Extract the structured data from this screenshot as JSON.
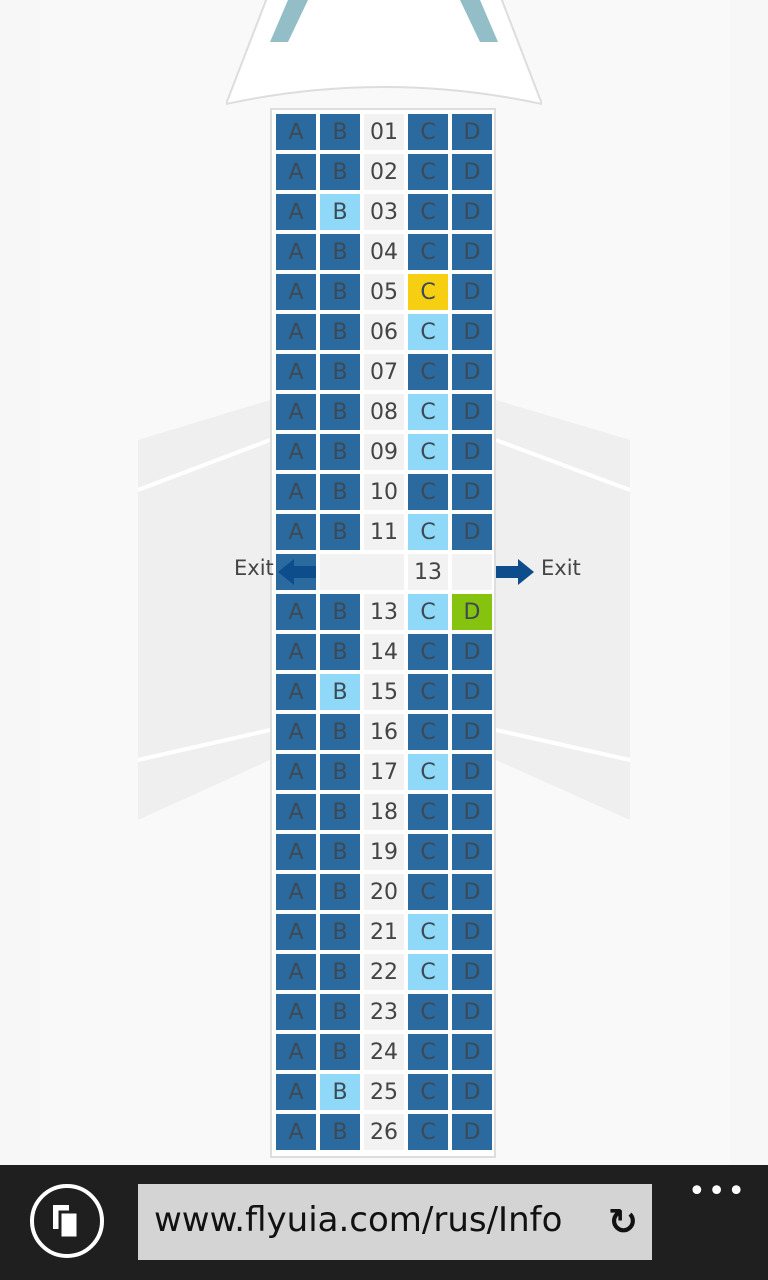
{
  "seatmap": {
    "colors": {
      "occupied": "#2a6a9e",
      "available": "#8fd8f8",
      "selected": "#f6cf12",
      "highlight": "#86c30e"
    },
    "exit_label": "Exit",
    "exit_row_number": "13",
    "rows": [
      {
        "num": "01",
        "A": "occupied",
        "B": "occupied",
        "C": "occupied",
        "D": "occupied"
      },
      {
        "num": "02",
        "A": "occupied",
        "B": "occupied",
        "C": "occupied",
        "D": "occupied"
      },
      {
        "num": "03",
        "A": "occupied",
        "B": "available",
        "C": "occupied",
        "D": "occupied"
      },
      {
        "num": "04",
        "A": "occupied",
        "B": "occupied",
        "C": "occupied",
        "D": "occupied"
      },
      {
        "num": "05",
        "A": "occupied",
        "B": "occupied",
        "C": "selected",
        "D": "occupied"
      },
      {
        "num": "06",
        "A": "occupied",
        "B": "occupied",
        "C": "available",
        "D": "occupied"
      },
      {
        "num": "07",
        "A": "occupied",
        "B": "occupied",
        "C": "occupied",
        "D": "occupied"
      },
      {
        "num": "08",
        "A": "occupied",
        "B": "occupied",
        "C": "available",
        "D": "occupied"
      },
      {
        "num": "09",
        "A": "occupied",
        "B": "occupied",
        "C": "available",
        "D": "occupied"
      },
      {
        "num": "10",
        "A": "occupied",
        "B": "occupied",
        "C": "occupied",
        "D": "occupied"
      },
      {
        "num": "11",
        "A": "occupied",
        "B": "occupied",
        "C": "available",
        "D": "occupied"
      },
      {
        "exit": true
      },
      {
        "num": "13",
        "A": "occupied",
        "B": "occupied",
        "C": "available",
        "D": "highlight"
      },
      {
        "num": "14",
        "A": "occupied",
        "B": "occupied",
        "C": "occupied",
        "D": "occupied"
      },
      {
        "num": "15",
        "A": "occupied",
        "B": "available",
        "C": "occupied",
        "D": "occupied"
      },
      {
        "num": "16",
        "A": "occupied",
        "B": "occupied",
        "C": "occupied",
        "D": "occupied"
      },
      {
        "num": "17",
        "A": "occupied",
        "B": "occupied",
        "C": "available",
        "D": "occupied"
      },
      {
        "num": "18",
        "A": "occupied",
        "B": "occupied",
        "C": "occupied",
        "D": "occupied"
      },
      {
        "num": "19",
        "A": "occupied",
        "B": "occupied",
        "C": "occupied",
        "D": "occupied"
      },
      {
        "num": "20",
        "A": "occupied",
        "B": "occupied",
        "C": "occupied",
        "D": "occupied"
      },
      {
        "num": "21",
        "A": "occupied",
        "B": "occupied",
        "C": "available",
        "D": "occupied"
      },
      {
        "num": "22",
        "A": "occupied",
        "B": "occupied",
        "C": "available",
        "D": "occupied"
      },
      {
        "num": "23",
        "A": "occupied",
        "B": "occupied",
        "C": "occupied",
        "D": "occupied"
      },
      {
        "num": "24",
        "A": "occupied",
        "B": "occupied",
        "C": "occupied",
        "D": "occupied"
      },
      {
        "num": "25",
        "A": "occupied",
        "B": "available",
        "C": "occupied",
        "D": "occupied"
      },
      {
        "num": "26",
        "A": "occupied",
        "B": "occupied",
        "C": "occupied",
        "D": "occupied"
      }
    ]
  },
  "browser": {
    "url": "www.flyuia.com/rus/Info",
    "more": "•••"
  }
}
